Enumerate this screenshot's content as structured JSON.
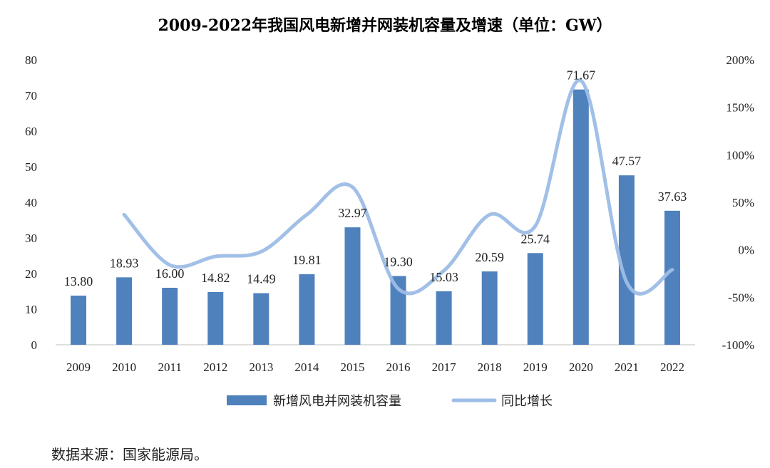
{
  "chart_data": {
    "type": "bar",
    "title": "2009-2022年我国风电新增并网装机容量及增速（单位：GW）",
    "categories": [
      "2009",
      "2010",
      "2011",
      "2012",
      "2013",
      "2014",
      "2015",
      "2016",
      "2017",
      "2018",
      "2019",
      "2020",
      "2021",
      "2022"
    ],
    "series": [
      {
        "name": "新增风电并网装机容量",
        "type": "bar",
        "axis": "left",
        "color": "#4f81bd",
        "values": [
          13.8,
          18.93,
          16.0,
          14.82,
          14.49,
          19.81,
          32.97,
          19.3,
          15.03,
          20.59,
          25.74,
          71.67,
          47.57,
          37.63
        ],
        "labels": [
          "13.80",
          "18.93",
          "16.00",
          "14.82",
          "14.49",
          "19.81",
          "32.97",
          "19.30",
          "15.03",
          "20.59",
          "25.74",
          "71.67",
          "47.57",
          "37.63"
        ]
      },
      {
        "name": "同比增长",
        "type": "line",
        "axis": "right",
        "color": "#9dbde6",
        "values": [
          null,
          37,
          -16,
          -7,
          -2,
          37,
          66,
          -41,
          -22,
          37,
          25,
          178,
          -34,
          -21
        ]
      }
    ],
    "y_left": {
      "min": 0,
      "max": 80,
      "ticks": [
        "0",
        "10",
        "20",
        "30",
        "40",
        "50",
        "60",
        "70",
        "80"
      ]
    },
    "y_right": {
      "min": -100,
      "max": 200,
      "unit": "%",
      "ticks": [
        "-100%",
        "-50%",
        "0%",
        "50%",
        "100%",
        "150%",
        "200%"
      ]
    },
    "legend_position": "bottom"
  },
  "source_note": "数据来源：国家能源局。"
}
